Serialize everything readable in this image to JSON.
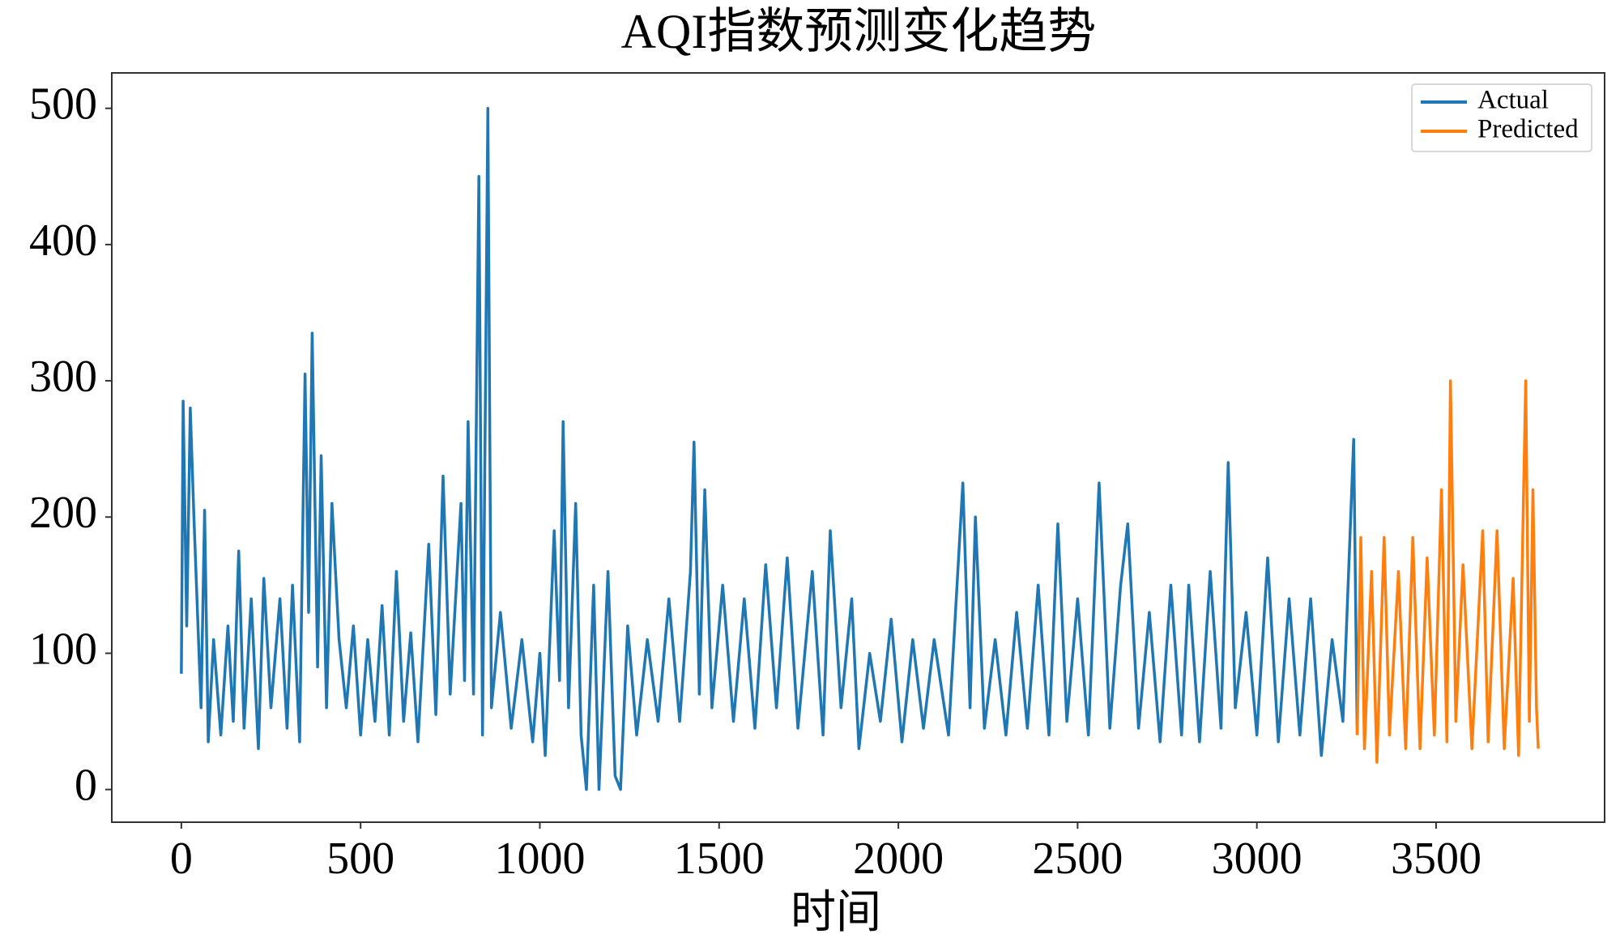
{
  "chart_data": {
    "type": "line",
    "title": "AQI指数预测变化趋势",
    "x_label": "时间",
    "xlim": [
      -194,
      3970
    ],
    "ylim": [
      -24,
      526
    ],
    "xticks": [
      0,
      500,
      1000,
      1500,
      2000,
      2500,
      3000,
      3500
    ],
    "yticks": [
      0,
      100,
      200,
      300,
      400,
      500
    ],
    "grid": false,
    "legend": "upper right",
    "series": [
      {
        "name": "Actual",
        "color": "#1f77b4",
        "x": [
          0,
          5,
          15,
          25,
          35,
          45,
          55,
          65,
          75,
          90,
          110,
          130,
          145,
          160,
          175,
          195,
          215,
          230,
          250,
          275,
          295,
          310,
          330,
          345,
          355,
          365,
          380,
          390,
          405,
          420,
          440,
          460,
          480,
          500,
          520,
          540,
          560,
          580,
          600,
          620,
          640,
          660,
          690,
          710,
          730,
          750,
          780,
          790,
          800,
          815,
          830,
          840,
          855,
          865,
          890,
          920,
          950,
          980,
          1000,
          1015,
          1040,
          1055,
          1065,
          1080,
          1100,
          1115,
          1130,
          1150,
          1165,
          1190,
          1210,
          1225,
          1245,
          1270,
          1300,
          1330,
          1360,
          1390,
          1420,
          1430,
          1445,
          1460,
          1480,
          1510,
          1540,
          1570,
          1600,
          1630,
          1660,
          1690,
          1720,
          1760,
          1790,
          1810,
          1840,
          1870,
          1890,
          1920,
          1950,
          1980,
          2010,
          2040,
          2070,
          2100,
          2140,
          2180,
          2200,
          2215,
          2240,
          2270,
          2300,
          2330,
          2360,
          2390,
          2420,
          2445,
          2470,
          2500,
          2530,
          2560,
          2590,
          2620,
          2640,
          2670,
          2700,
          2730,
          2760,
          2790,
          2810,
          2840,
          2870,
          2900,
          2920,
          2940,
          2970,
          3000,
          3030,
          3060,
          3090,
          3120,
          3150,
          3180,
          3210,
          3240,
          3270,
          3280
        ],
        "values": [
          85,
          285,
          120,
          280,
          200,
          130,
          60,
          205,
          35,
          110,
          40,
          120,
          50,
          175,
          45,
          140,
          30,
          155,
          60,
          140,
          45,
          150,
          35,
          305,
          130,
          335,
          90,
          245,
          60,
          210,
          110,
          60,
          120,
          40,
          110,
          50,
          135,
          40,
          160,
          50,
          115,
          35,
          180,
          55,
          230,
          70,
          210,
          80,
          270,
          70,
          450,
          40,
          500,
          60,
          130,
          45,
          110,
          35,
          100,
          25,
          190,
          80,
          270,
          60,
          210,
          40,
          0,
          150,
          0,
          160,
          10,
          0,
          120,
          40,
          110,
          50,
          140,
          50,
          160,
          255,
          70,
          220,
          60,
          150,
          50,
          140,
          45,
          165,
          60,
          170,
          45,
          160,
          40,
          190,
          60,
          140,
          30,
          100,
          50,
          125,
          35,
          110,
          45,
          110,
          40,
          225,
          60,
          200,
          45,
          110,
          40,
          130,
          45,
          150,
          40,
          195,
          50,
          140,
          40,
          225,
          45,
          150,
          195,
          45,
          130,
          35,
          150,
          40,
          150,
          35,
          160,
          45,
          240,
          60,
          130,
          40,
          170,
          35,
          140,
          40,
          140,
          25,
          110,
          50,
          257,
          40
        ]
      },
      {
        "name": "Predicted",
        "color": "#ff7f0e",
        "x": [
          3280,
          3290,
          3300,
          3320,
          3335,
          3355,
          3370,
          3395,
          3415,
          3435,
          3455,
          3475,
          3495,
          3515,
          3530,
          3540,
          3555,
          3575,
          3600,
          3630,
          3645,
          3670,
          3690,
          3715,
          3730,
          3750,
          3760,
          3770,
          3780,
          3785
        ],
        "values": [
          40,
          185,
          30,
          160,
          20,
          185,
          40,
          160,
          30,
          185,
          30,
          170,
          40,
          220,
          35,
          300,
          50,
          165,
          30,
          190,
          35,
          190,
          30,
          155,
          25,
          300,
          50,
          220,
          60,
          30
        ]
      }
    ]
  }
}
